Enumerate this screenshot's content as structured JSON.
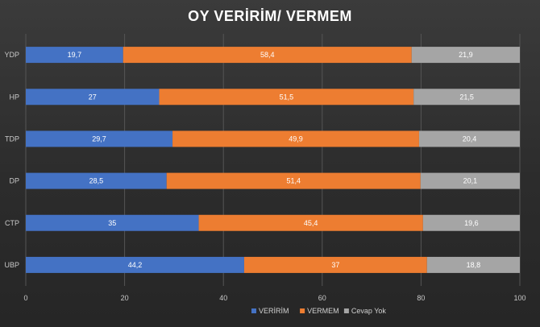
{
  "chart_data": {
    "type": "bar",
    "orientation": "horizontal",
    "stacked": true,
    "title": "OY VERİRİM/ VERMEM",
    "categories": [
      "YDP",
      "HP",
      "TDP",
      "DP",
      "CTP",
      "UBP"
    ],
    "series": [
      {
        "name": "VERİRİM",
        "color": "#4472c4",
        "values": [
          19.7,
          27,
          29.7,
          28.5,
          35,
          44.2
        ],
        "labels": [
          "19,7",
          "27",
          "29,7",
          "28,5",
          "35",
          "44,2"
        ]
      },
      {
        "name": "VERMEM",
        "color": "#ed7d31",
        "values": [
          58.4,
          51.5,
          49.9,
          51.4,
          45.4,
          37
        ],
        "labels": [
          "58,4",
          "51,5",
          "49,9",
          "51,4",
          "45,4",
          "37"
        ]
      },
      {
        "name": "Cevap Yok",
        "color": "#a5a5a5",
        "values": [
          21.9,
          21.5,
          20.4,
          20.1,
          19.6,
          18.8
        ],
        "labels": [
          "21,9",
          "21,5",
          "20,4",
          "20,1",
          "19,6",
          "18,8"
        ]
      }
    ],
    "xlim": [
      0,
      100
    ],
    "xticks": [
      "0",
      "20",
      "40",
      "60",
      "80",
      "100"
    ],
    "grid": true,
    "legend_position": "bottom"
  }
}
